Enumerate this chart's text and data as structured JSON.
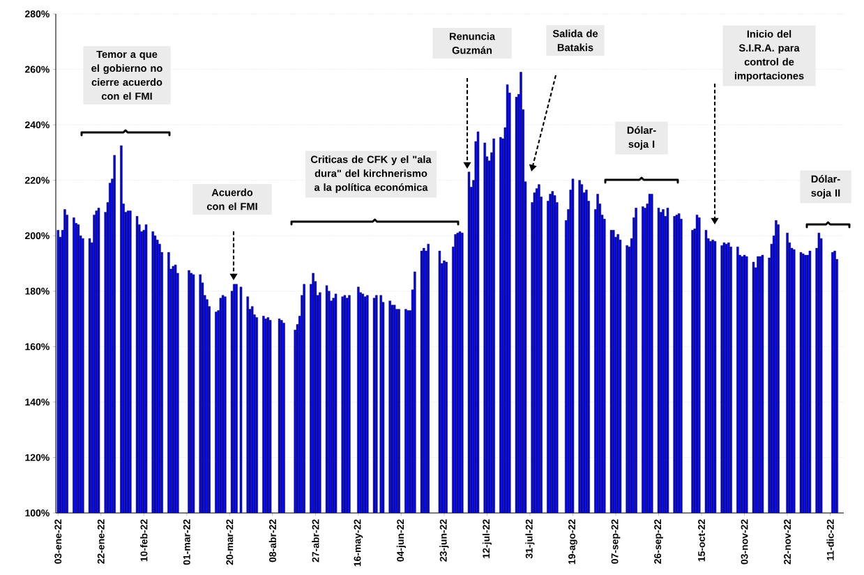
{
  "chart_data": {
    "type": "bar",
    "x": [
      "2022-01-03",
      "2022-01-04",
      "2022-01-05",
      "2022-01-06",
      "2022-01-07",
      "2022-01-10",
      "2022-01-11",
      "2022-01-12",
      "2022-01-13",
      "2022-01-14",
      "2022-01-17",
      "2022-01-18",
      "2022-01-19",
      "2022-01-20",
      "2022-01-21",
      "2022-01-24",
      "2022-01-25",
      "2022-01-26",
      "2022-01-27",
      "2022-01-28",
      "2022-01-31",
      "2022-02-01",
      "2022-02-02",
      "2022-02-03",
      "2022-02-04",
      "2022-02-07",
      "2022-02-08",
      "2022-02-09",
      "2022-02-10",
      "2022-02-11",
      "2022-02-14",
      "2022-02-15",
      "2022-02-16",
      "2022-02-17",
      "2022-02-18",
      "2022-02-21",
      "2022-02-22",
      "2022-02-23",
      "2022-02-24",
      "2022-02-25",
      "2022-03-02",
      "2022-03-03",
      "2022-03-04",
      "2022-03-07",
      "2022-03-08",
      "2022-03-09",
      "2022-03-10",
      "2022-03-11",
      "2022-03-14",
      "2022-03-15",
      "2022-03-16",
      "2022-03-17",
      "2022-03-18",
      "2022-03-21",
      "2022-03-22",
      "2022-03-23",
      "2022-03-25",
      "2022-03-28",
      "2022-03-29",
      "2022-03-30",
      "2022-03-31",
      "2022-04-01",
      "2022-04-04",
      "2022-04-05",
      "2022-04-06",
      "2022-04-07",
      "2022-04-11",
      "2022-04-12",
      "2022-04-13",
      "2022-04-18",
      "2022-04-19",
      "2022-04-20",
      "2022-04-21",
      "2022-04-22",
      "2022-04-25",
      "2022-04-26",
      "2022-04-27",
      "2022-04-28",
      "2022-04-29",
      "2022-05-02",
      "2022-05-03",
      "2022-05-04",
      "2022-05-05",
      "2022-05-06",
      "2022-05-09",
      "2022-05-10",
      "2022-05-11",
      "2022-05-12",
      "2022-05-16",
      "2022-05-17",
      "2022-05-18",
      "2022-05-19",
      "2022-05-20",
      "2022-05-23",
      "2022-05-24",
      "2022-05-26",
      "2022-05-27",
      "2022-05-30",
      "2022-05-31",
      "2022-06-01",
      "2022-06-02",
      "2022-06-03",
      "2022-06-06",
      "2022-06-07",
      "2022-06-08",
      "2022-06-09",
      "2022-06-10",
      "2022-06-13",
      "2022-06-14",
      "2022-06-15",
      "2022-06-16",
      "2022-06-21",
      "2022-06-22",
      "2022-06-23",
      "2022-06-24",
      "2022-06-27",
      "2022-06-28",
      "2022-06-29",
      "2022-06-30",
      "2022-07-01",
      "2022-07-04",
      "2022-07-05",
      "2022-07-06",
      "2022-07-07",
      "2022-07-08",
      "2022-07-11",
      "2022-07-12",
      "2022-07-13",
      "2022-07-14",
      "2022-07-15",
      "2022-07-18",
      "2022-07-19",
      "2022-07-20",
      "2022-07-21",
      "2022-07-22",
      "2022-07-25",
      "2022-07-26",
      "2022-07-27",
      "2022-07-28",
      "2022-07-29",
      "2022-08-01",
      "2022-08-02",
      "2022-08-03",
      "2022-08-04",
      "2022-08-05",
      "2022-08-08",
      "2022-08-09",
      "2022-08-10",
      "2022-08-11",
      "2022-08-12",
      "2022-08-16",
      "2022-08-17",
      "2022-08-18",
      "2022-08-19",
      "2022-08-22",
      "2022-08-23",
      "2022-08-24",
      "2022-08-25",
      "2022-08-26",
      "2022-08-29",
      "2022-08-30",
      "2022-08-31",
      "2022-09-01",
      "2022-09-02",
      "2022-09-05",
      "2022-09-06",
      "2022-09-07",
      "2022-09-08",
      "2022-09-09",
      "2022-09-12",
      "2022-09-13",
      "2022-09-14",
      "2022-09-15",
      "2022-09-16",
      "2022-09-19",
      "2022-09-20",
      "2022-09-21",
      "2022-09-22",
      "2022-09-23",
      "2022-09-26",
      "2022-09-27",
      "2022-09-28",
      "2022-09-29",
      "2022-09-30",
      "2022-10-03",
      "2022-10-04",
      "2022-10-05",
      "2022-10-06",
      "2022-10-11",
      "2022-10-12",
      "2022-10-13",
      "2022-10-14",
      "2022-10-17",
      "2022-10-18",
      "2022-10-19",
      "2022-10-20",
      "2022-10-21",
      "2022-10-24",
      "2022-10-25",
      "2022-10-26",
      "2022-10-27",
      "2022-10-28",
      "2022-10-31",
      "2022-11-01",
      "2022-11-02",
      "2022-11-03",
      "2022-11-04",
      "2022-11-07",
      "2022-11-08",
      "2022-11-09",
      "2022-11-10",
      "2022-11-11",
      "2022-11-14",
      "2022-11-15",
      "2022-11-16",
      "2022-11-17",
      "2022-11-18",
      "2022-11-22",
      "2022-11-23",
      "2022-11-24",
      "2022-11-25",
      "2022-11-28",
      "2022-11-29",
      "2022-11-30",
      "2022-12-01",
      "2022-12-02",
      "2022-12-05",
      "2022-12-06",
      "2022-12-07",
      "2022-12-12",
      "2022-12-13",
      "2022-12-14"
    ],
    "values": [
      202,
      199.5,
      202,
      209.5,
      207.5,
      206.5,
      204.5,
      204,
      200,
      199,
      199,
      197.5,
      207.5,
      209,
      210,
      208.5,
      212,
      219,
      220.5,
      229,
      232.5,
      211.5,
      208.5,
      209,
      209,
      207,
      204,
      201.5,
      202,
      204,
      201.5,
      200,
      198.5,
      197,
      194,
      194,
      188,
      189,
      189.5,
      186.5,
      187.5,
      186.5,
      186,
      186,
      183,
      178.5,
      177,
      174.5,
      172.5,
      173,
      177.5,
      178.5,
      178,
      180,
      182.5,
      182.5,
      181.5,
      178,
      173.5,
      174.5,
      171.5,
      170.5,
      171,
      170,
      170.5,
      169.5,
      170,
      169.5,
      168.5,
      166,
      168,
      171,
      178.5,
      182.5,
      182.5,
      186.5,
      183.5,
      178.5,
      179.5,
      182,
      180,
      176.5,
      177.5,
      179,
      178,
      178.5,
      177.5,
      178.5,
      181.5,
      179.5,
      179,
      178,
      178.5,
      177.5,
      178.5,
      178.5,
      176,
      176.5,
      175,
      175,
      173.5,
      173.5,
      173.5,
      173,
      173,
      180.5,
      187,
      194.5,
      195.5,
      194.5,
      197,
      194.5,
      190,
      191,
      190.5,
      196,
      200.5,
      201,
      201.5,
      201,
      223,
      217.5,
      220,
      234,
      237.5,
      233.5,
      228.5,
      227,
      230,
      235,
      235.5,
      235,
      239,
      254.5,
      251.5,
      250,
      251,
      259,
      245.5,
      219.5,
      212,
      215.5,
      217,
      218.5,
      214,
      212.5,
      215,
      216,
      214.5,
      212,
      205.5,
      209.5,
      216.5,
      220.5,
      220,
      218.5,
      215.5,
      216.5,
      212.5,
      209.5,
      215,
      211.5,
      207.5,
      206,
      202,
      202,
      199.5,
      200.5,
      198.5,
      196.5,
      196,
      199,
      206.5,
      210,
      210.5,
      210,
      211.5,
      215,
      215,
      210,
      208.5,
      209.5,
      207,
      210,
      207,
      207.5,
      208,
      206,
      202,
      202.5,
      207.5,
      206.5,
      202,
      199,
      198,
      198.5,
      198,
      196.5,
      197.5,
      197,
      197.5,
      196,
      196,
      193,
      192.5,
      193,
      192.5,
      190.5,
      188.5,
      192.5,
      192.5,
      193,
      192,
      197,
      200,
      205.5,
      204,
      201,
      197.5,
      195.5,
      195,
      194,
      193.5,
      193,
      193,
      194.5,
      195.5,
      201,
      199,
      194,
      194.5,
      191.5
    ],
    "color": "#0000ff",
    "xlim": [
      "2022-01-02",
      "2022-12-17"
    ],
    "ylim": [
      100,
      280
    ],
    "xticks": [
      {
        "value": "2022-01-03",
        "label": "03-ene-22"
      },
      {
        "value": "2022-01-22",
        "label": "22-ene-22"
      },
      {
        "value": "2022-02-10",
        "label": "10-feb-22"
      },
      {
        "value": "2022-03-01",
        "label": "01-mar-22"
      },
      {
        "value": "2022-03-20",
        "label": "20-mar-22"
      },
      {
        "value": "2022-04-08",
        "label": "08-abr-22"
      },
      {
        "value": "2022-04-27",
        "label": "27-abr-22"
      },
      {
        "value": "2022-05-16",
        "label": "16-may-22"
      },
      {
        "value": "2022-06-04",
        "label": "04-jun-22"
      },
      {
        "value": "2022-06-23",
        "label": "23-jun-22"
      },
      {
        "value": "2022-07-12",
        "label": "12-jul-22"
      },
      {
        "value": "2022-07-31",
        "label": "31-jul-22"
      },
      {
        "value": "2022-08-19",
        "label": "19-ago-22"
      },
      {
        "value": "2022-09-07",
        "label": "07-sep-22"
      },
      {
        "value": "2022-09-26",
        "label": "26-sep-22"
      },
      {
        "value": "2022-10-15",
        "label": "15-oct-22"
      },
      {
        "value": "2022-11-03",
        "label": "03-nov-22"
      },
      {
        "value": "2022-11-22",
        "label": "22-nov-22"
      },
      {
        "value": "2022-12-11",
        "label": "11-dic-22"
      }
    ],
    "yticks": [
      {
        "value": 100,
        "label": "100%"
      },
      {
        "value": 120,
        "label": "120%"
      },
      {
        "value": 140,
        "label": "140%"
      },
      {
        "value": 160,
        "label": "160%"
      },
      {
        "value": 180,
        "label": "180%"
      },
      {
        "value": 200,
        "label": "200%"
      },
      {
        "value": 220,
        "label": "220%"
      },
      {
        "value": 240,
        "label": "240%"
      },
      {
        "value": 260,
        "label": "260%"
      },
      {
        "value": 280,
        "label": "280%"
      }
    ],
    "grid": "y",
    "annotations": [
      "Temor a que el gobierno no cierre acuerdo  con el FMI",
      "Acuerdo con el FMI",
      "Criticas de CFK y el \"ala dura\" del kirchnerismo a la política económica",
      "Renuncia Guzmán",
      "Salida de Batakis",
      "Dólar-soja I",
      "Inicio del S.I.R.A. para control de importaciones",
      "Dólar-soja II"
    ]
  }
}
